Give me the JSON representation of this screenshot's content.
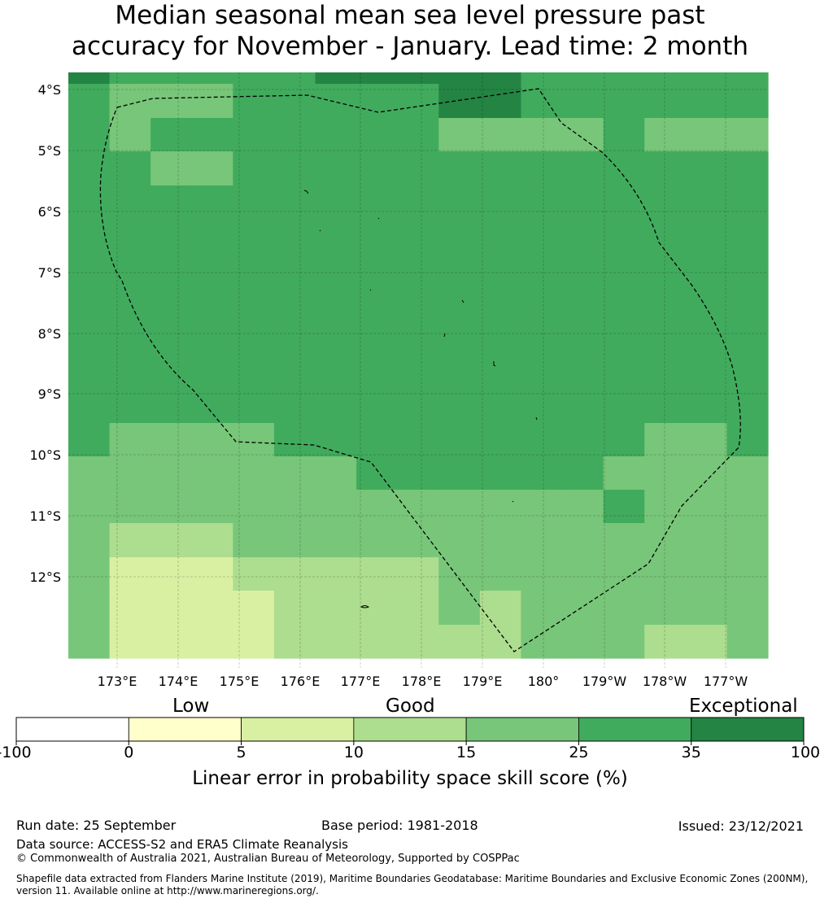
{
  "title": {
    "line1": "Median seasonal mean sea level pressure past",
    "line2": "accuracy for November - January. Lead time: 2 month"
  },
  "map": {
    "lat_labels": [
      "4°S",
      "5°S",
      "6°S",
      "7°S",
      "8°S",
      "9°S",
      "10°S",
      "11°S",
      "12°S"
    ],
    "lon_labels": [
      "173°E",
      "174°E",
      "175°E",
      "176°E",
      "177°E",
      "178°E",
      "179°E",
      "180°",
      "179°W",
      "178°W",
      "177°W"
    ],
    "colors": {
      "c0": "#ffffcc",
      "c1": "#d9f0a3",
      "c2": "#addd8e",
      "c3": "#78c679",
      "c4": "#41ab5d",
      "c5": "#238443"
    },
    "grid_rows": [
      "54444455555444444",
      "43334444455444444",
      "43444444433334333",
      "44334444444444444",
      "44444444444444444",
      "44444444444444444",
      "44444444444444444",
      "44444444444444444",
      "44444444444444444",
      "44444444444444444",
      "44444444444444444",
      "43333444444444334",
      "33333334444443333",
      "33333333333334333",
      "32223333333333333",
      "31112222233333333",
      "31111222232333333",
      "31111222222333223"
    ]
  },
  "colorbar": {
    "categories": [
      "Low",
      "Good",
      "Exceptional"
    ],
    "ticks": [
      "-100",
      "0",
      "5",
      "10",
      "15",
      "25",
      "35",
      "100"
    ],
    "label": "Linear error in probability space skill score (%)"
  },
  "footer": {
    "run_date": "Run date: 25 September",
    "base_period": "Base period: 1981-2018",
    "issued": "Issued: 23/12/2021",
    "data_source": "Data source: ACCESS-S2 and ERA5 Climate Reanalysis",
    "copyright": "© Commonwealth of Australia 2021, Australian Bureau of Meteorology, Supported by COSPPac",
    "shapefile_line1": "Shapefile data extracted from Flanders Marine Institute (2019), Maritime Boundaries Geodatabase: Maritime Boundaries and Exclusive Economic Zones (200NM),",
    "shapefile_line2": "version 11. Available online at http://www.marineregions.org/."
  }
}
